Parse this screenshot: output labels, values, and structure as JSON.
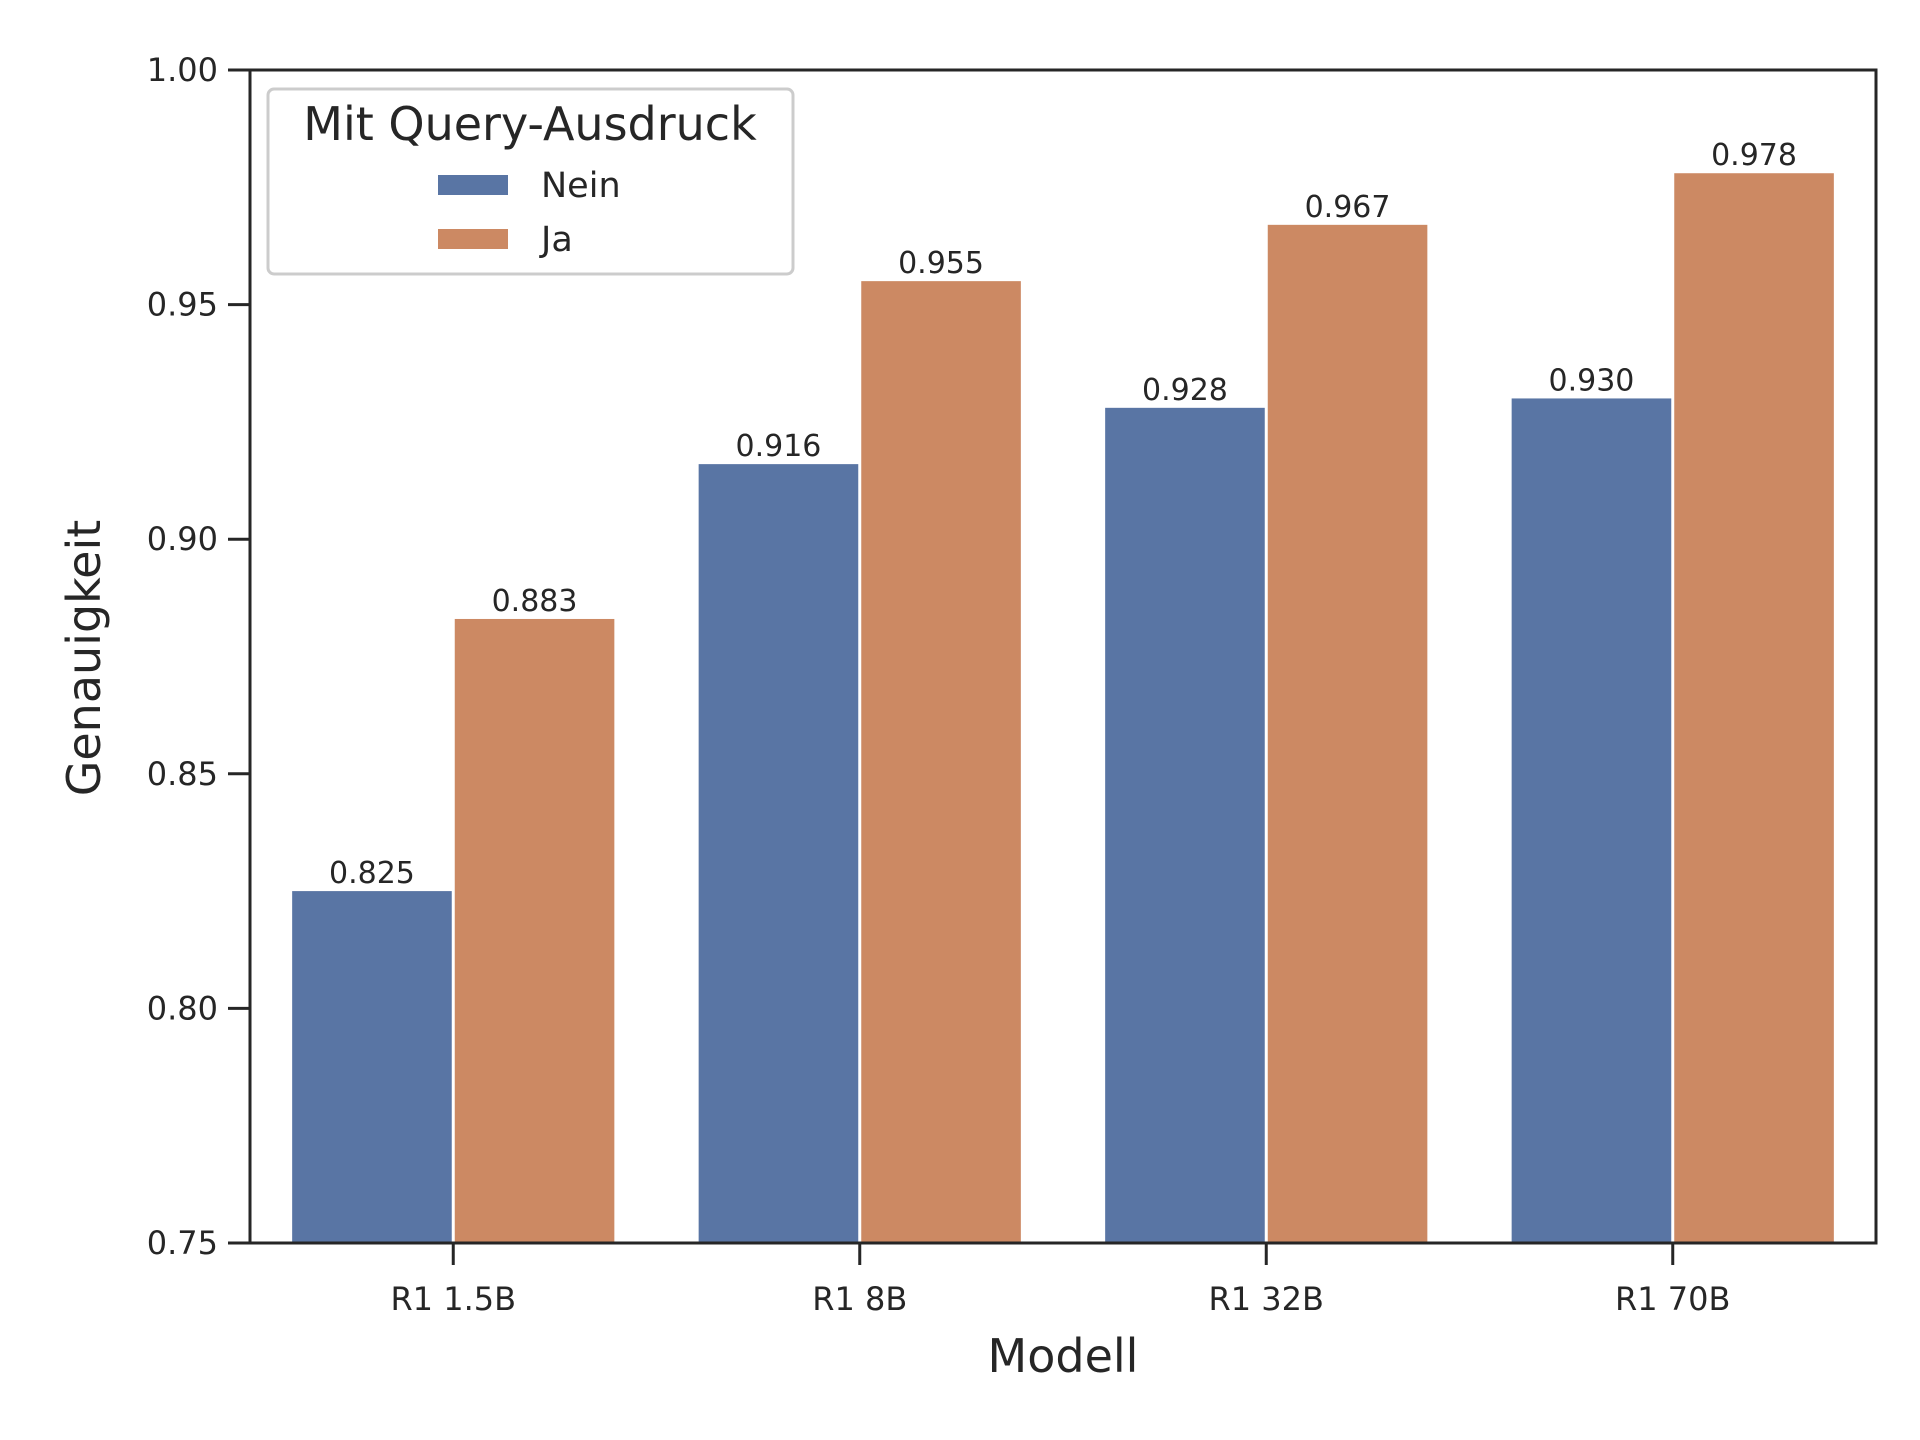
{
  "chart_data": {
    "type": "bar",
    "title": "",
    "xlabel": "Modell",
    "ylabel": "Genauigkeit",
    "categories": [
      "R1 1.5B",
      "R1 8B",
      "R1 32B",
      "R1 70B"
    ],
    "series": [
      {
        "name": "Nein",
        "color": "#5975a4",
        "values": [
          0.825,
          0.916,
          0.928,
          0.93
        ],
        "labels": [
          "0.825",
          "0.916",
          "0.928",
          "0.930"
        ]
      },
      {
        "name": "Ja",
        "color": "#cc8963",
        "values": [
          0.883,
          0.955,
          0.967,
          0.978
        ],
        "labels": [
          "0.883",
          "0.955",
          "0.967",
          "0.978"
        ]
      }
    ],
    "ylim": [
      0.75,
      1.0
    ],
    "yticks": [
      0.75,
      0.8,
      0.85,
      0.9,
      0.95,
      1.0
    ],
    "ytick_labels": [
      "0.75",
      "0.80",
      "0.85",
      "0.90",
      "0.95",
      "1.00"
    ],
    "grid": false,
    "legend": {
      "title": "Mit Query-Ausdruck",
      "placement": "top-left"
    }
  }
}
